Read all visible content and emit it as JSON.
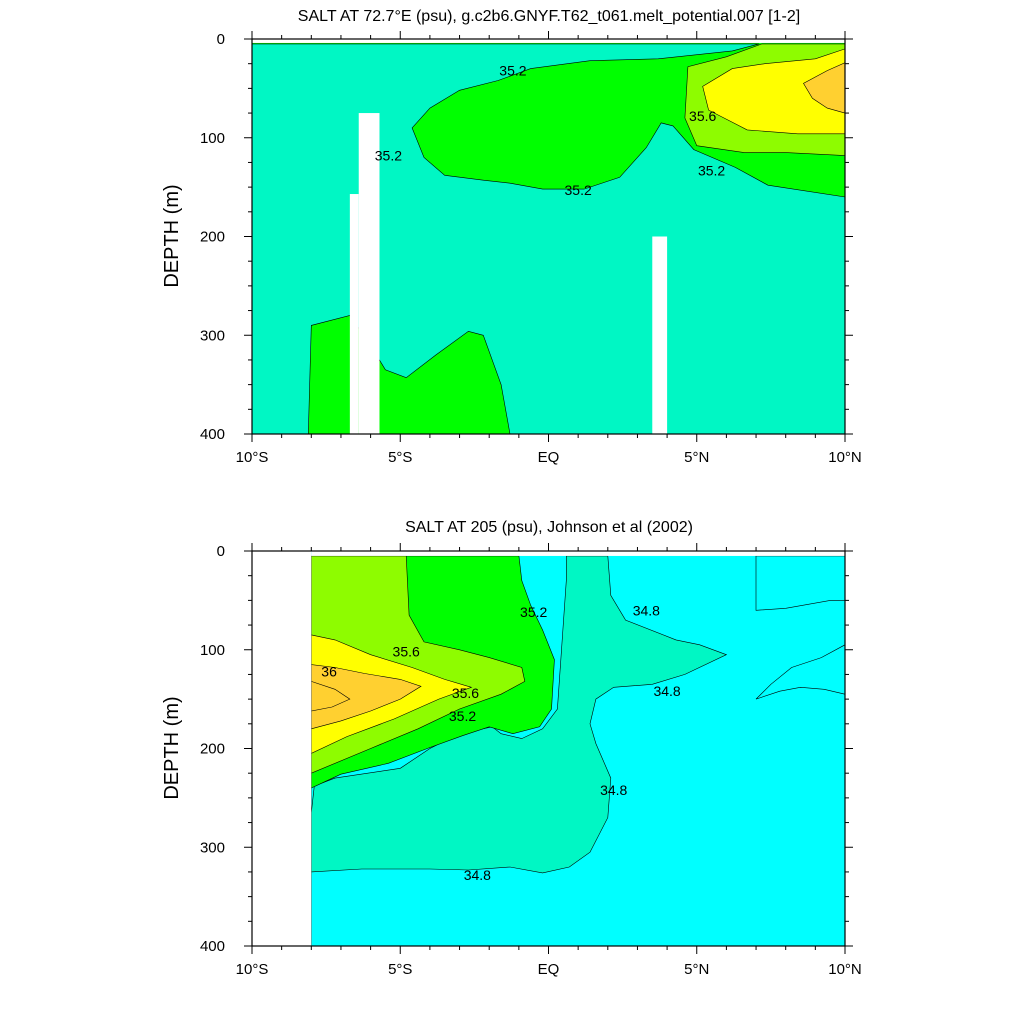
{
  "colors": {
    "c34_6": "#4de8f2",
    "c34_8": "#00ffff",
    "c35_0": "#00f7c4",
    "c35_2": "#00ff00",
    "c35_4": "#8efc00",
    "c35_6": "#ffff00",
    "c35_8": "#ffd030",
    "missing": "#ffffff",
    "line": "#000000"
  },
  "panels": [
    {
      "id": "top",
      "title": "SALT AT  72.7°E (psu), g.c2b6.GNYF.T62_t061.melt_potential.007 [1-2]",
      "ylabel": "DEPTH (m)",
      "xlim": [
        -10,
        10
      ],
      "ylim": [
        0,
        400
      ],
      "x_ticks": [
        -10,
        -5,
        0,
        5,
        10
      ],
      "x_tick_labels": [
        "10°S",
        "5°S",
        "EQ",
        "5°N",
        "10°N"
      ],
      "y_ticks": [
        0,
        100,
        200,
        300,
        400
      ],
      "contour_labels": [
        {
          "text": "35.2",
          "x": -1.2,
          "y": 32
        },
        {
          "text": "35.2",
          "x": -5.4,
          "y": 118
        },
        {
          "text": "35.2",
          "x": 1.0,
          "y": 153
        },
        {
          "text": "35.2",
          "x": 5.5,
          "y": 133
        },
        {
          "text": "35.6",
          "x": 5.2,
          "y": 78
        }
      ]
    },
    {
      "id": "bottom",
      "title": "SALT AT 205 (psu), Johnson et al (2002)",
      "ylabel": "DEPTH (m)",
      "xlim": [
        -10,
        10
      ],
      "ylim": [
        0,
        400
      ],
      "x_ticks": [
        -10,
        -5,
        0,
        5,
        10
      ],
      "x_tick_labels": [
        "10°S",
        "5°S",
        "EQ",
        "5°N",
        "10°N"
      ],
      "y_ticks": [
        0,
        100,
        200,
        300,
        400
      ],
      "contour_labels": [
        {
          "text": "35.2",
          "x": -0.5,
          "y": 62
        },
        {
          "text": "34.8",
          "x": 3.3,
          "y": 60
        },
        {
          "text": "35.6",
          "x": -4.8,
          "y": 102
        },
        {
          "text": "36",
          "x": -7.4,
          "y": 122
        },
        {
          "text": "35.6",
          "x": -2.8,
          "y": 144
        },
        {
          "text": "35.2",
          "x": -2.9,
          "y": 167
        },
        {
          "text": "34.8",
          "x": 4.0,
          "y": 142
        },
        {
          "text": "34.8",
          "x": 2.2,
          "y": 242
        },
        {
          "text": "34.8",
          "x": -2.4,
          "y": 328
        }
      ]
    }
  ],
  "chart_data": [
    {
      "type": "heatmap",
      "title": "SALT AT  72.7°E (psu), g.c2b6.GNYF.T62_t061.melt_potential.007 [1-2]",
      "xlabel": "",
      "ylabel": "DEPTH (m)",
      "xlim": [
        -10,
        10
      ],
      "ylim": [
        0,
        400
      ],
      "y_inverted": true,
      "contour_levels": [
        35.2,
        35.6
      ],
      "regions": [
        {
          "level": 35.0,
          "polygon": [
            [
              -10,
              5
            ],
            [
              -10,
              400
            ],
            [
              -8.1,
              400
            ],
            [
              -8,
              290
            ],
            [
              -6.7,
              280
            ],
            [
              -6.1,
              305
            ],
            [
              -5.5,
              335
            ],
            [
              -4.8,
              343
            ],
            [
              -3.8,
              320
            ],
            [
              -2.7,
              296
            ],
            [
              -2.2,
              300
            ],
            [
              -1.6,
              350
            ],
            [
              -1.3,
              400
            ],
            [
              10,
              400
            ],
            [
              10,
              160
            ],
            [
              7.4,
              148
            ],
            [
              6.3,
              130
            ],
            [
              4.9,
              112
            ],
            [
              4.2,
              88
            ],
            [
              3.8,
              85
            ],
            [
              3.3,
              110
            ],
            [
              2.4,
              140
            ],
            [
              1.2,
              152
            ],
            [
              -0.2,
              152
            ],
            [
              -1.3,
              146
            ],
            [
              -2.2,
              143
            ],
            [
              -3.5,
              138
            ],
            [
              -4.2,
              120
            ],
            [
              -4.6,
              90
            ],
            [
              -4.0,
              70
            ],
            [
              -3.0,
              52
            ],
            [
              -1.7,
              42
            ],
            [
              -0.6,
              30
            ],
            [
              1.4,
              22
            ],
            [
              3.7,
              20
            ],
            [
              6.2,
              12
            ],
            [
              7.1,
              5
            ]
          ]
        },
        {
          "level": 35.4,
          "polygon": [
            [
              4.7,
              28
            ],
            [
              4.6,
              80
            ],
            [
              5.0,
              108
            ],
            [
              6.6,
              115
            ],
            [
              8.0,
              115
            ],
            [
              10,
              118
            ],
            [
              10,
              5
            ],
            [
              7.2,
              5
            ],
            [
              6.0,
              18
            ]
          ]
        },
        {
          "level": 35.6,
          "polygon": [
            [
              5.2,
              48
            ],
            [
              5.4,
              72
            ],
            [
              6.7,
              92
            ],
            [
              8.4,
              96
            ],
            [
              10,
              96
            ],
            [
              10,
              10
            ],
            [
              9.0,
              20
            ],
            [
              7.3,
              25
            ],
            [
              6.2,
              30
            ]
          ]
        },
        {
          "level": 35.8,
          "polygon": [
            [
              8.6,
              45
            ],
            [
              8.9,
              60
            ],
            [
              9.4,
              70
            ],
            [
              10,
              75
            ],
            [
              10,
              24
            ],
            [
              9.4,
              32
            ]
          ]
        }
      ],
      "missing_blocks": [
        {
          "x0": -6.4,
          "x1": -5.7,
          "y0": 75,
          "y1": 400
        },
        {
          "x0": -6.7,
          "x1": -6.4,
          "y0": 157,
          "y1": 400
        },
        {
          "x0": 3.5,
          "x1": 4.0,
          "y0": 200,
          "y1": 400
        },
        {
          "x0": -10.0,
          "x1": 10.0,
          "y0": 0,
          "y1": 4
        }
      ]
    },
    {
      "type": "heatmap",
      "title": "SALT AT 205 (psu), Johnson et al (2002)",
      "xlabel": "",
      "ylabel": "DEPTH (m)",
      "xlim": [
        -10,
        10
      ],
      "ylim": [
        0,
        400
      ],
      "y_inverted": true,
      "contour_levels": [
        34.8,
        35.2,
        35.6,
        36
      ],
      "regions": [
        {
          "level": 34.6,
          "polygon": [
            [
              7,
              5
            ],
            [
              10,
              5
            ],
            [
              10,
              40
            ],
            [
              9.4,
              35
            ],
            [
              8,
              25
            ],
            [
              7.2,
              20
            ]
          ]
        },
        {
          "level": 35.0,
          "polygon": [
            [
              -8,
              5
            ],
            [
              -8,
              400
            ],
            [
              10,
              400
            ],
            [
              10,
              400
            ],
            [
              -8,
              400
            ]
          ]
        },
        {
          "level": 35.0,
          "polygon": [
            [
              -8,
              265
            ],
            [
              -8,
              325
            ],
            [
              -6.3,
              322
            ],
            [
              -4.0,
              322
            ],
            [
              -2.7,
              323
            ],
            [
              -1.3,
              320
            ],
            [
              -0.2,
              326
            ],
            [
              0.7,
              320
            ],
            [
              1.4,
              305
            ],
            [
              2.0,
              270
            ],
            [
              2.1,
              230
            ],
            [
              1.6,
              195
            ],
            [
              1.4,
              175
            ],
            [
              1.6,
              150
            ],
            [
              2.2,
              138
            ],
            [
              3.5,
              135
            ],
            [
              4.6,
              125
            ],
            [
              6,
              105
            ],
            [
              5.1,
              95
            ],
            [
              4.3,
              90
            ],
            [
              2.6,
              70
            ],
            [
              2.1,
              45
            ],
            [
              2.0,
              5
            ],
            [
              0.6,
              5
            ],
            [
              0.6,
              30
            ],
            [
              0.3,
              160
            ],
            [
              -0.2,
              180
            ],
            [
              -0.9,
              190
            ],
            [
              -1.6,
              185
            ],
            [
              -1.9,
              178
            ],
            [
              -3.0,
              185
            ],
            [
              -4.0,
              200
            ],
            [
              -5.0,
              220
            ],
            [
              -7.2,
              230
            ],
            [
              -7.9,
              238
            ]
          ]
        },
        {
          "level": 34.8,
          "polygon": [
            [
              7,
              5
            ],
            [
              7,
              60
            ],
            [
              8,
              58
            ],
            [
              9.5,
              50
            ],
            [
              10,
              50
            ],
            [
              10,
              5
            ]
          ]
        },
        {
          "level": 34.8,
          "polygon": [
            [
              7,
              150
            ],
            [
              7.5,
              135
            ],
            [
              8.2,
              118
            ],
            [
              9.2,
              108
            ],
            [
              10,
              95
            ],
            [
              10,
              145
            ],
            [
              9.3,
              140
            ],
            [
              8.5,
              138
            ],
            [
              7.8,
              142
            ]
          ]
        },
        {
          "level": 35.2,
          "polygon": [
            [
              -8,
              5
            ],
            [
              -8,
              240
            ],
            [
              -7.0,
              226
            ],
            [
              -5.4,
              215
            ],
            [
              -4.0,
              199
            ],
            [
              -2.9,
              187
            ],
            [
              -2.0,
              178
            ],
            [
              -1.2,
              185
            ],
            [
              -0.3,
              178
            ],
            [
              0.1,
              160
            ],
            [
              0.2,
              110
            ],
            [
              -0.2,
              80
            ],
            [
              -0.6,
              55
            ],
            [
              -0.9,
              30
            ],
            [
              -1.0,
              5
            ]
          ]
        },
        {
          "level": 35.4,
          "polygon": [
            [
              -8,
              5
            ],
            [
              -8,
              225
            ],
            [
              -6.0,
              200
            ],
            [
              -4.4,
              180
            ],
            [
              -3.0,
              160
            ],
            [
              -1.6,
              145
            ],
            [
              -0.8,
              132
            ],
            [
              -0.9,
              118
            ],
            [
              -2.0,
              108
            ],
            [
              -3.0,
              100
            ],
            [
              -4.2,
              92
            ],
            [
              -4.7,
              65
            ],
            [
              -4.8,
              5
            ]
          ]
        },
        {
          "level": 35.6,
          "polygon": [
            [
              -8,
              85
            ],
            [
              -8,
              205
            ],
            [
              -6.8,
              188
            ],
            [
              -5.2,
              170
            ],
            [
              -3.7,
              150
            ],
            [
              -2.6,
              138
            ],
            [
              -3.5,
              130
            ],
            [
              -4.6,
              118
            ],
            [
              -6.0,
              105
            ],
            [
              -7.2,
              90
            ]
          ]
        },
        {
          "level": 35.8,
          "polygon": [
            [
              -8,
              115
            ],
            [
              -8,
              180
            ],
            [
              -7.0,
              172
            ],
            [
              -6.0,
              162
            ],
            [
              -5.0,
              150
            ],
            [
              -4.3,
              137
            ],
            [
              -5.0,
              130
            ],
            [
              -6.2,
              124
            ],
            [
              -7.2,
              118
            ]
          ]
        },
        {
          "level": 36.0,
          "polygon": [
            [
              -8,
              132
            ],
            [
              -8,
              162
            ],
            [
              -7.3,
              158
            ],
            [
              -6.7,
              150
            ],
            [
              -7.2,
              140
            ]
          ]
        }
      ],
      "missing_blocks": [
        {
          "x0": -10.0,
          "x1": -8.0,
          "y0": 0,
          "y1": 400
        },
        {
          "x0": -8.0,
          "x1": 10.0,
          "y0": 0,
          "y1": 5
        }
      ]
    }
  ]
}
